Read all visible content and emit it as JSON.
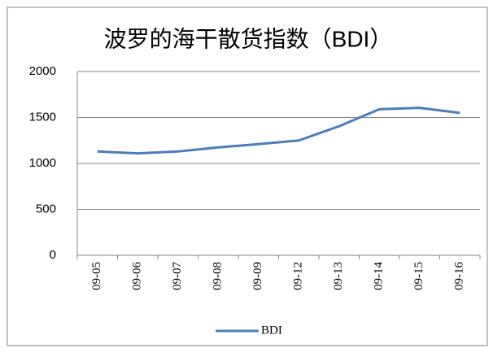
{
  "chart_data": {
    "type": "line",
    "title": "波罗的海干散货指数（BDI）",
    "categories": [
      "09-05",
      "09-06",
      "09-07",
      "09-08",
      "09-09",
      "09-12",
      "09-13",
      "09-14",
      "09-15",
      "09-16"
    ],
    "series": [
      {
        "name": "BDI",
        "color": "#4a7ebb",
        "values": [
          1130,
          1110,
          1130,
          1175,
          1210,
          1250,
          1405,
          1590,
          1605,
          1550
        ]
      }
    ],
    "ylim": [
      0,
      2000
    ],
    "yticks": [
      0,
      500,
      1000,
      1500,
      2000
    ],
    "grid": true,
    "legend": "bottom"
  }
}
